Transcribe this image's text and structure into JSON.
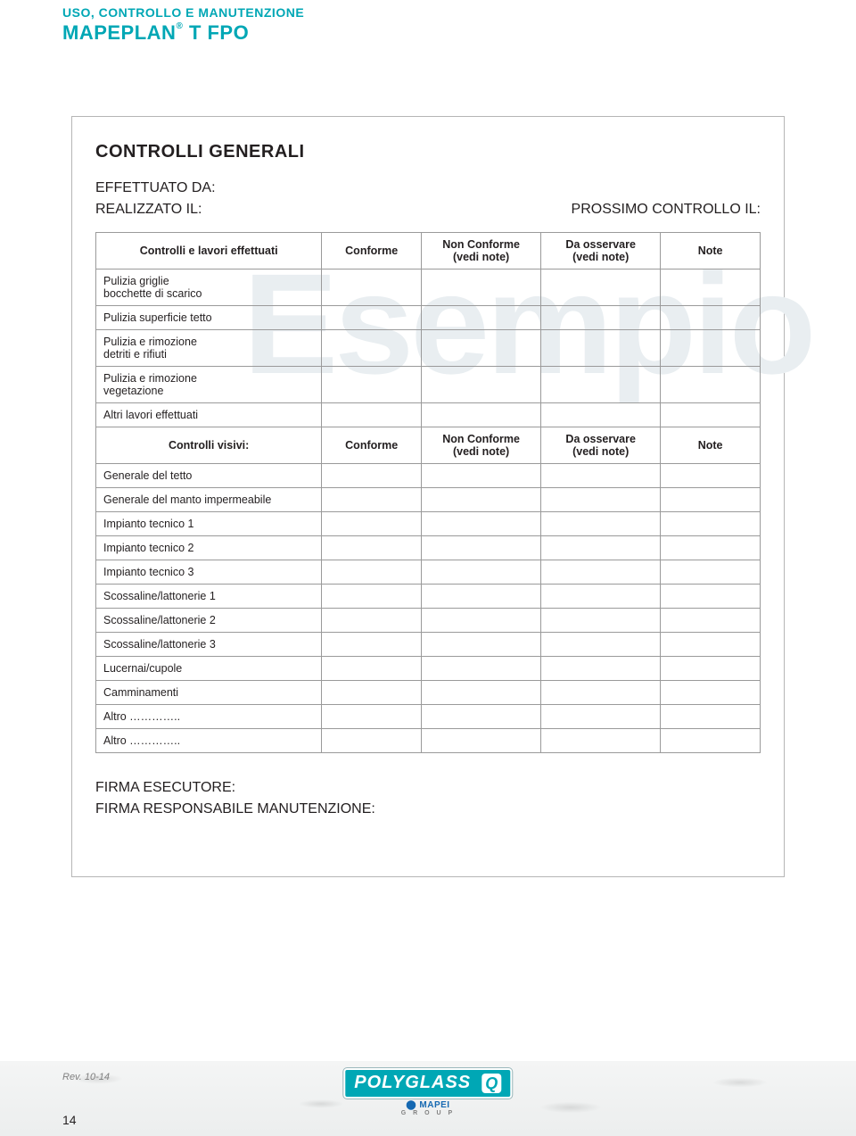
{
  "header": {
    "line1": "USO, CONTROLLO E MANUTENZIONE",
    "brand": "MAPEPLAN",
    "reg": "®",
    "product": " T FPO"
  },
  "watermark": "Esempio",
  "section_title": "CONTROLLI GENERALI",
  "effettuato": "EFFETTUATO DA:",
  "realizzato": "REALIZZATO IL:",
  "prossimo": "PROSSIMO CONTROLLO IL:",
  "table1": {
    "headers": {
      "h1": "Controlli e lavori effettuati",
      "h2": "Conforme",
      "h3": "Non Conforme\n(vedi note)",
      "h4": "Da osservare\n(vedi note)",
      "h5": "Note"
    },
    "rows": [
      "Pulizia griglie\nbocchette di scarico",
      "Pulizia superficie tetto",
      "Pulizia e rimozione\ndetriti e rifiuti",
      "Pulizia e rimozione\nvegetazione",
      "Altri lavori effettuati"
    ]
  },
  "table2": {
    "headers": {
      "h1": "Controlli visivi:",
      "h2": "Conforme",
      "h3": "Non Conforme\n(vedi note)",
      "h4": "Da osservare\n(vedi note)",
      "h5": "Note"
    },
    "rows": [
      "Generale del tetto",
      "Generale del manto impermeabile",
      "Impianto tecnico 1",
      "Impianto tecnico 2",
      "Impianto tecnico 3",
      "Scossaline/lattonerie 1",
      "Scossaline/lattonerie 2",
      "Scossaline/lattonerie 3",
      "Lucernai/cupole",
      "Camminamenti",
      "Altro …………..",
      "Altro ………….."
    ]
  },
  "signatures": {
    "s1": "FIRMA ESECUTORE:",
    "s2": "FIRMA RESPONSABILE MANUTENZIONE:"
  },
  "footer": {
    "rev": "Rev. 10-14",
    "logo_main": "POLYGLASS",
    "logo_q": "Q",
    "logo_sub": "MAPEI",
    "logo_group": "G R O U P",
    "page_num": "14"
  },
  "colors": {
    "teal": "#00a7b5",
    "text": "#231f20",
    "border": "#9a9a9a",
    "box_border": "#b5b5b5",
    "watermark": "#e9eef1",
    "footer_bg_top": "#f4f5f5",
    "footer_bg_bot": "#eceeee",
    "mapei_blue": "#1669b2",
    "grey": "#808080"
  }
}
